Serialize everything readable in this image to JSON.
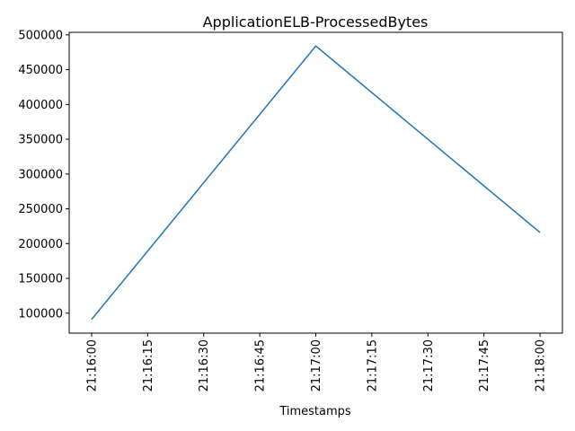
{
  "chart_data": {
    "type": "line",
    "title": "ApplicationELB-ProcessedBytes",
    "xlabel": "Timestamps",
    "ylabel": "",
    "x": [
      "21:16:00",
      "21:17:00",
      "21:18:00"
    ],
    "series": [
      {
        "values": [
          91000,
          484000,
          216000
        ],
        "color": "#1f77b4"
      }
    ],
    "x_ticks": [
      "21:16:00",
      "21:16:15",
      "21:16:30",
      "21:16:45",
      "21:17:00",
      "21:17:15",
      "21:17:30",
      "21:17:45",
      "21:18:00"
    ],
    "y_ticks": [
      100000,
      150000,
      200000,
      250000,
      300000,
      350000,
      400000,
      450000,
      500000
    ],
    "x_range": [
      "21:15:54",
      "21:18:06"
    ],
    "ylim": [
      71350,
      503650
    ],
    "grid": false,
    "legend": "none"
  }
}
